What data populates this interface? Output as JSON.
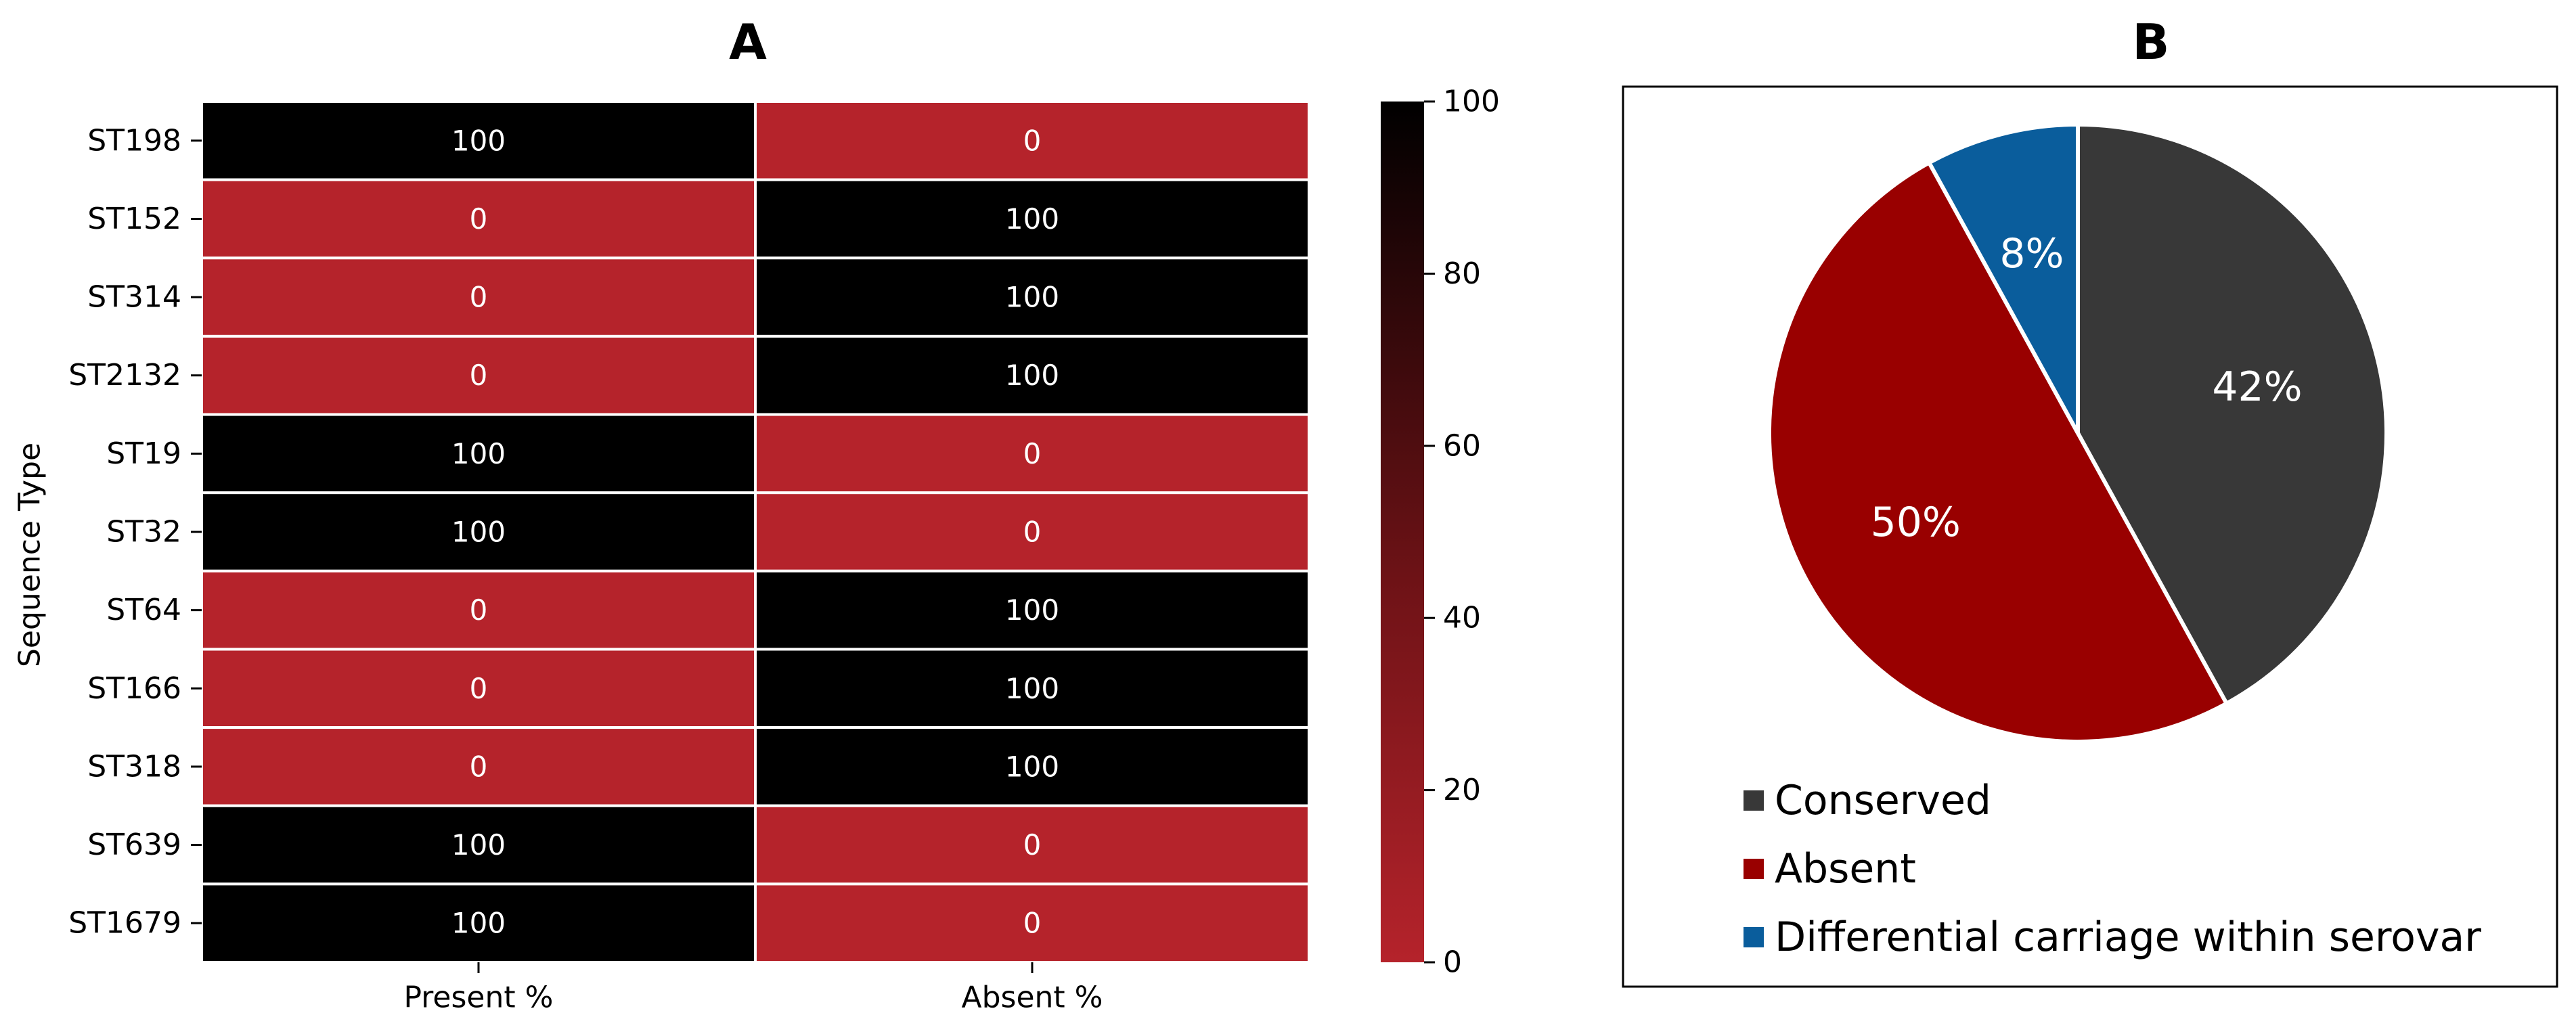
{
  "chart_data": [
    {
      "type": "heatmap",
      "title": "A",
      "xlabel": "",
      "ylabel": "Sequence Type",
      "columns": [
        "Present %",
        "Absent %"
      ],
      "rows": [
        "ST198",
        "ST152",
        "ST314",
        "ST2132",
        "ST19",
        "ST32",
        "ST64",
        "ST166",
        "ST318",
        "ST639",
        "ST1679"
      ],
      "values": [
        [
          100,
          0
        ],
        [
          0,
          100
        ],
        [
          0,
          100
        ],
        [
          0,
          100
        ],
        [
          100,
          0
        ],
        [
          100,
          0
        ],
        [
          0,
          100
        ],
        [
          0,
          100
        ],
        [
          0,
          100
        ],
        [
          100,
          0
        ],
        [
          100,
          0
        ]
      ],
      "colorbar": {
        "range": [
          0,
          100
        ],
        "ticks": [
          "0",
          "20",
          "40",
          "60",
          "80",
          "100"
        ],
        "color_low": "#b5232b",
        "color_mid": "#6d1216",
        "color_high": "#000000"
      },
      "annotation_color": "#ffffff"
    },
    {
      "type": "pie",
      "title": "B",
      "slices": [
        {
          "label": "Conserved",
          "value": 42,
          "display": "42%",
          "color": "#383838"
        },
        {
          "label": "Absent",
          "value": 50,
          "display": "50%",
          "color": "#990000"
        },
        {
          "label": "Differential carriage within serovar",
          "value": 8,
          "display": "8%",
          "color": "#0a5d9c"
        }
      ],
      "legend_position": "bottom-left"
    }
  ]
}
